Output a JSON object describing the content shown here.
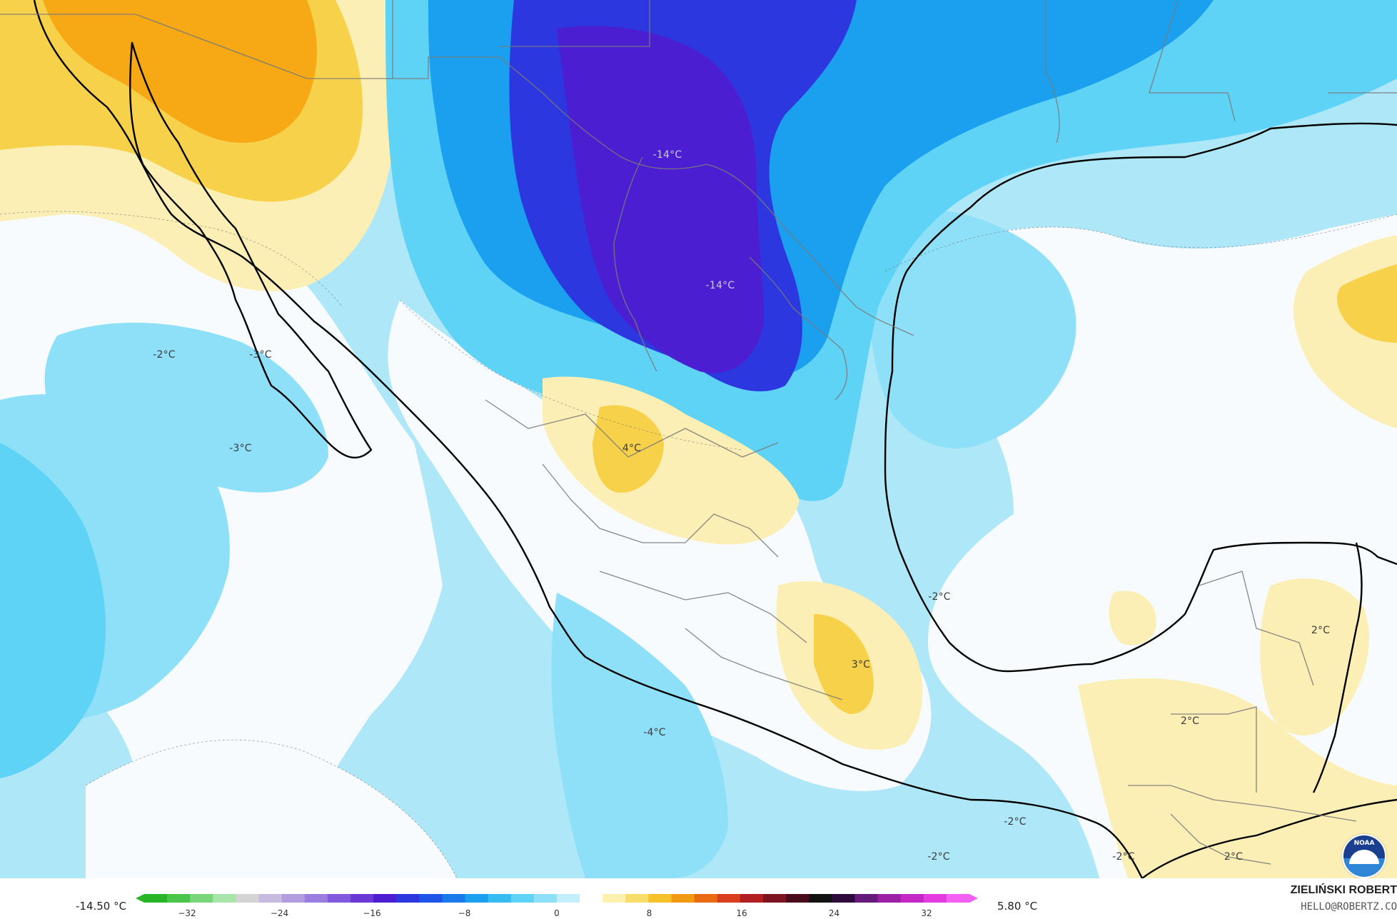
{
  "map": {
    "temperature_labels": [
      {
        "text": "-14°C",
        "shade": "dark"
      },
      {
        "text": "-14°C",
        "shade": "dark"
      },
      {
        "text": "-2°C",
        "shade": "light"
      },
      {
        "text": "-3°C",
        "shade": "light"
      },
      {
        "text": "-3°C",
        "shade": "light"
      },
      {
        "text": "4°C",
        "shade": "light"
      },
      {
        "text": "-2°C",
        "shade": "light"
      },
      {
        "text": "3°C",
        "shade": "light"
      },
      {
        "text": "2°C",
        "shade": "light"
      },
      {
        "text": "2°C",
        "shade": "light"
      },
      {
        "text": "-4°C",
        "shade": "light"
      },
      {
        "text": "-2°C",
        "shade": "light"
      },
      {
        "text": "-2°C",
        "shade": "light"
      },
      {
        "text": "-2°C",
        "shade": "light"
      },
      {
        "text": "2°C",
        "shade": "light"
      }
    ],
    "colors": {
      "ocean_light": "#aee7f8",
      "cyan": "#5fd3f6",
      "blue": "#1aa0ee",
      "deep_blue": "#2c37e0",
      "violet": "#4b1fd1",
      "white": "#f8fbfd",
      "pale_yellow": "#fbefb5",
      "yellow": "#f7d14a",
      "orange": "#f6a815",
      "coast": "#000000",
      "border": "#6a6a6a"
    },
    "logo": {
      "text": "NOAA",
      "icon": "noaa-logo-icon"
    }
  },
  "legend": {
    "min_label": "-14.50 °C",
    "max_label": "5.80 °C",
    "tick_labels": [
      "−32",
      "−24",
      "−16",
      "−8",
      "0",
      "8",
      "16",
      "24",
      "32"
    ],
    "scale_range": [
      -32,
      32
    ],
    "palette": [
      "#27b427",
      "#49c649",
      "#79d579",
      "#a8e5a8",
      "#d4d4d4",
      "#c7bce0",
      "#b19de0",
      "#9b7ddf",
      "#8258dc",
      "#6a38d6",
      "#4b1fd1",
      "#2c37e0",
      "#1f54e8",
      "#1a7aeb",
      "#1aa0ee",
      "#35bdf3",
      "#5fd3f6",
      "#8ee0f8",
      "#c3eefb",
      "#ffffff",
      "#fdf1b0",
      "#f8dd6b",
      "#f6c12b",
      "#f29a12",
      "#ea6a11",
      "#d93f1c",
      "#b21f23",
      "#7c1320",
      "#4a0b1b",
      "#121212",
      "#2f0b3d",
      "#661a7a",
      "#9a1fa5",
      "#c428c4",
      "#e33be0",
      "#f25ff1"
    ]
  },
  "author": {
    "name": "ZIELIŃSKI ROBERT",
    "email": "HELLO@ROBERTZ.CO"
  }
}
